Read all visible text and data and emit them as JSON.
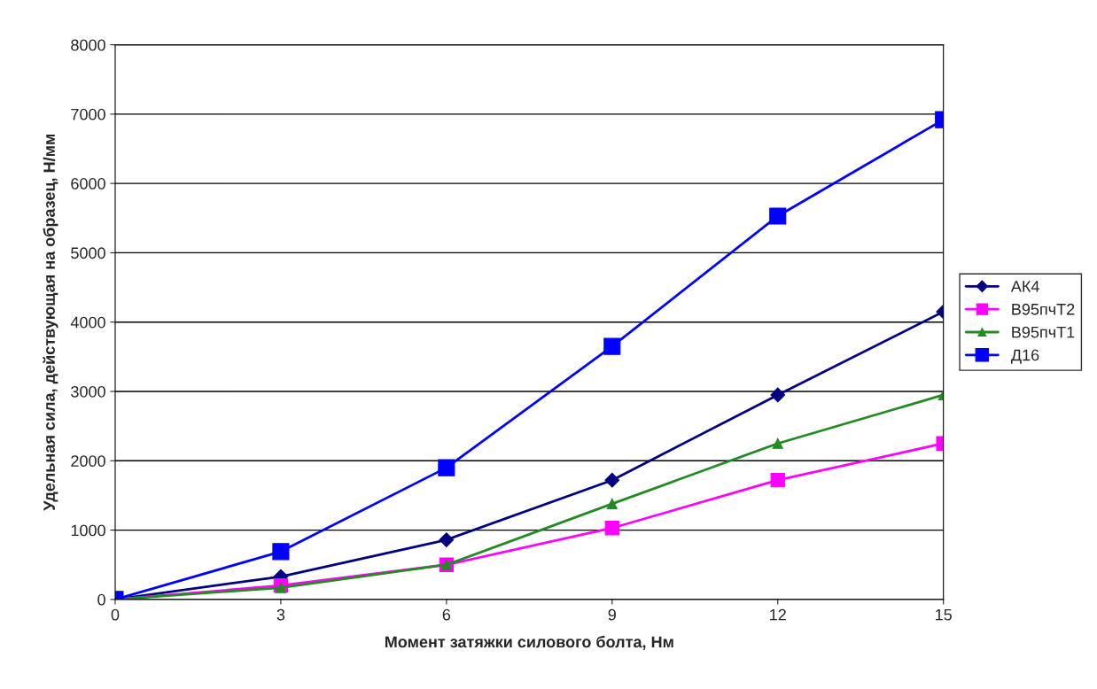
{
  "chart_data": {
    "type": "line",
    "xlabel": "Момент затяжки силового болта, Нм",
    "ylabel": "Удельная сила, действующая на образец, Н/мм",
    "x": [
      0,
      3,
      6,
      9,
      12,
      15
    ],
    "xlim": [
      0,
      15
    ],
    "xticks": [
      0,
      3,
      6,
      9,
      12,
      15
    ],
    "ylim": [
      0,
      8000
    ],
    "yticks": [
      0,
      1000,
      2000,
      3000,
      4000,
      5000,
      6000,
      7000,
      8000
    ],
    "grid": "y",
    "legend": "right",
    "line_style": "solid",
    "series": [
      {
        "name": "АК4",
        "color": "#000080",
        "marker": "diamond",
        "values": [
          0,
          330,
          860,
          1720,
          2950,
          4150
        ]
      },
      {
        "name": "В95пчТ2",
        "color": "#ff00ff",
        "marker": "square",
        "values": [
          0,
          200,
          500,
          1030,
          1720,
          2250
        ]
      },
      {
        "name": "В95пчТ1",
        "color": "#228b22",
        "marker": "triangle",
        "values": [
          0,
          170,
          500,
          1380,
          2250,
          2950
        ]
      },
      {
        "name": "Д16",
        "color": "#0000ff",
        "marker": "square",
        "values": [
          0,
          690,
          1900,
          3650,
          5530,
          6920
        ]
      }
    ]
  }
}
